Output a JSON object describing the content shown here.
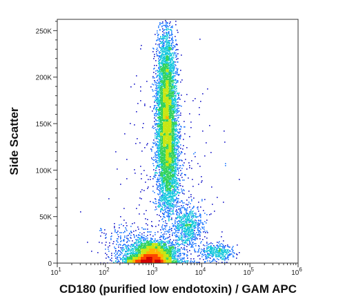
{
  "chart_data": {
    "type": "scatter",
    "subtype": "flow-cytometry-density-dot-plot",
    "xlabel": "CD180 (purified low endotoxin) / GAM APC",
    "ylabel": "Side Scatter",
    "x_scale": "log",
    "xlim": [
      10,
      1000000
    ],
    "x_tick_values": [
      10,
      100,
      1000,
      10000,
      100000,
      1000000
    ],
    "x_tick_labels": [
      "10",
      "10",
      "10",
      "10",
      "10",
      "10"
    ],
    "x_tick_exponents": [
      "1",
      "2",
      "3",
      "4",
      "5",
      "6"
    ],
    "y_scale": "linear",
    "ylim": [
      0,
      262144
    ],
    "y_tick_values": [
      0,
      50000,
      100000,
      150000,
      200000,
      250000
    ],
    "y_tick_labels": [
      "0",
      "50K",
      "100K",
      "150K",
      "200K",
      "250K"
    ],
    "grid": false,
    "legend": "none",
    "density_colors": [
      "#1414c8",
      "#1e78ff",
      "#14c8dc",
      "#32d25a",
      "#c8e614",
      "#ffb400",
      "#ff4600",
      "#d20000"
    ],
    "populations": [
      {
        "x_center": 1800,
        "y_center": 165000,
        "x_spread_decades": 0.1,
        "y_spread": 42000,
        "relative_count": 5500
      },
      {
        "x_center": 2000,
        "y_center": 105000,
        "x_spread_decades": 0.12,
        "y_spread": 28000,
        "relative_count": 1700
      },
      {
        "x_center": 1000,
        "y_center": 10000,
        "x_spread_decades": 0.22,
        "y_spread": 7000,
        "relative_count": 3200
      },
      {
        "x_center": 700,
        "y_center": 4000,
        "x_spread_decades": 0.22,
        "y_spread": 3000,
        "relative_count": 1600
      },
      {
        "x_center": 5000,
        "y_center": 40000,
        "x_spread_decades": 0.15,
        "y_spread": 10000,
        "relative_count": 700
      },
      {
        "x_center": 20000,
        "y_center": 12000,
        "x_spread_decades": 0.18,
        "y_spread": 4500,
        "relative_count": 400
      },
      {
        "x_center": 300,
        "y_center": 18000,
        "x_spread_decades": 0.3,
        "y_spread": 12000,
        "relative_count": 350
      },
      {
        "x_center": 2000,
        "y_center": 60000,
        "x_spread_decades": 0.5,
        "y_spread": 80000,
        "relative_count": 450
      }
    ]
  }
}
